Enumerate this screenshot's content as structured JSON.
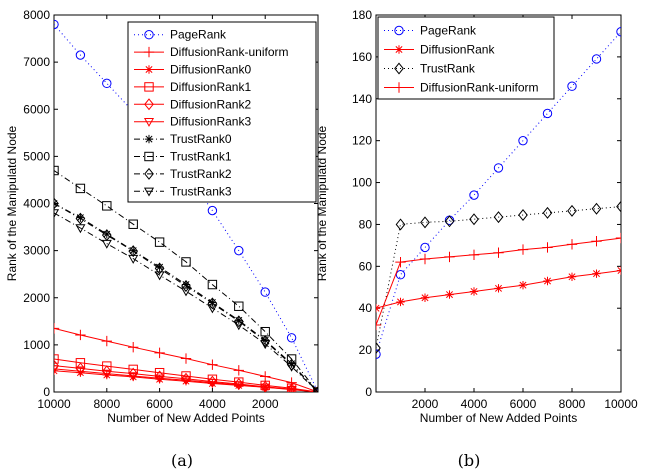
{
  "chart_data": [
    {
      "type": "line",
      "caption": "(a)",
      "xlabel": "Number of New Added Points",
      "ylabel": "Rank of the Manipulatd Node",
      "xlim": [
        10000,
        0
      ],
      "ylim": [
        0,
        8000
      ],
      "x_reversed": true,
      "xticks": [
        10000,
        8000,
        6000,
        4000,
        2000
      ],
      "yticks": [
        0,
        1000,
        2000,
        3000,
        4000,
        5000,
        6000,
        7000,
        8000
      ],
      "x": [
        10000,
        9000,
        8000,
        7000,
        6000,
        5000,
        4000,
        3000,
        2000,
        1000,
        0
      ],
      "legend_position": "top-right",
      "series": [
        {
          "name": "PageRank",
          "color": "#0000ff",
          "dash": "1,3",
          "marker": "circle",
          "values": [
            7800,
            7150,
            6550,
            5950,
            5350,
            4650,
            3850,
            3000,
            2120,
            1150,
            0
          ]
        },
        {
          "name": "DiffusionRank-uniform",
          "color": "#ff0000",
          "dash": "",
          "marker": "plus",
          "values": [
            1350,
            1210,
            1080,
            950,
            830,
            710,
            580,
            460,
            330,
            200,
            0
          ]
        },
        {
          "name": "DiffusionRank0",
          "color": "#ff0000",
          "dash": "",
          "marker": "asterisk",
          "values": [
            450,
            410,
            360,
            320,
            270,
            230,
            180,
            140,
            100,
            60,
            0
          ]
        },
        {
          "name": "DiffusionRank1",
          "color": "#ff0000",
          "dash": "",
          "marker": "square",
          "values": [
            700,
            620,
            550,
            480,
            410,
            340,
            270,
            210,
            140,
            80,
            0
          ]
        },
        {
          "name": "DiffusionRank2",
          "color": "#ff0000",
          "dash": "",
          "marker": "diamond",
          "values": [
            560,
            500,
            440,
            390,
            330,
            280,
            220,
            170,
            110,
            60,
            0
          ]
        },
        {
          "name": "DiffusionRank3",
          "color": "#ff0000",
          "dash": "",
          "marker": "triangle-down",
          "values": [
            490,
            440,
            390,
            340,
            290,
            250,
            200,
            150,
            100,
            50,
            0
          ]
        },
        {
          "name": "TrustRank0",
          "color": "#000000",
          "dash": "6,3,1,3",
          "marker": "asterisk",
          "values": [
            4000,
            3700,
            3350,
            3000,
            2650,
            2280,
            1900,
            1520,
            1100,
            600,
            0
          ]
        },
        {
          "name": "TrustRank1",
          "color": "#000000",
          "dash": "6,3,1,3",
          "marker": "square",
          "values": [
            4700,
            4320,
            3950,
            3560,
            3180,
            2760,
            2280,
            1820,
            1280,
            700,
            0
          ]
        },
        {
          "name": "TrustRank2",
          "color": "#000000",
          "dash": "6,3,1,3",
          "marker": "diamond",
          "values": [
            4000,
            3680,
            3330,
            2990,
            2620,
            2250,
            1880,
            1500,
            1080,
            580,
            0
          ]
        },
        {
          "name": "TrustRank3",
          "color": "#000000",
          "dash": "6,3,1,3",
          "marker": "triangle-down",
          "values": [
            3800,
            3480,
            3150,
            2830,
            2480,
            2140,
            1780,
            1420,
            1020,
            540,
            0
          ]
        }
      ]
    },
    {
      "type": "line",
      "caption": "(b)",
      "xlabel": "Number of New Added Points",
      "ylabel": "Rank of the Manipulatd Node",
      "xlim": [
        0,
        10000
      ],
      "ylim": [
        0,
        180
      ],
      "x_reversed": false,
      "xticks": [
        2000,
        4000,
        6000,
        8000,
        10000
      ],
      "yticks": [
        0,
        20,
        40,
        60,
        80,
        100,
        120,
        140,
        160,
        180
      ],
      "x": [
        0,
        1000,
        2000,
        3000,
        4000,
        5000,
        6000,
        7000,
        8000,
        9000,
        10000
      ],
      "legend_position": "top-left",
      "series": [
        {
          "name": "PageRank",
          "color": "#0000ff",
          "dash": "1,3",
          "marker": "circle",
          "values": [
            18,
            56,
            69,
            82,
            94,
            107,
            120,
            133,
            146,
            159,
            172
          ]
        },
        {
          "name": "DiffusionRank",
          "color": "#ff0000",
          "dash": "",
          "marker": "asterisk",
          "values": [
            40,
            43,
            45,
            46.5,
            48,
            49.5,
            51,
            53,
            55,
            56.5,
            58
          ]
        },
        {
          "name": "TrustRank",
          "color": "#000000",
          "dash": "1,3",
          "marker": "diamond",
          "values": [
            21,
            80,
            81,
            81.5,
            82.5,
            83.5,
            84.5,
            85.5,
            86.5,
            87.5,
            88.5
          ]
        },
        {
          "name": "DiffusionRank-uniform",
          "color": "#ff0000",
          "dash": "",
          "marker": "plus",
          "values": [
            32,
            62,
            63.5,
            64.5,
            65.5,
            66.5,
            68,
            69,
            70.5,
            72,
            73.5
          ]
        }
      ]
    }
  ]
}
